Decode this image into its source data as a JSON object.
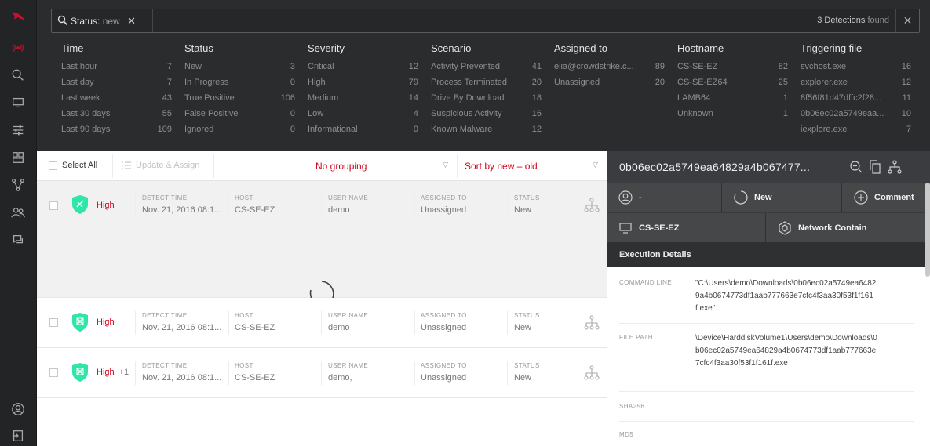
{
  "search": {
    "chip_key": "Status:",
    "chip_value": "new",
    "chip_remove": "✕",
    "count": "3 Detections",
    "count_suffix": "found",
    "clear": "✕"
  },
  "facets": [
    {
      "title": "Time",
      "rows": [
        [
          "Last hour",
          "7"
        ],
        [
          "Last day",
          "7"
        ],
        [
          "Last week",
          "43"
        ],
        [
          "Last 30 days",
          "55"
        ],
        [
          "Last 90 days",
          "109"
        ]
      ]
    },
    {
      "title": "Status",
      "rows": [
        [
          "New",
          "3"
        ],
        [
          "In Progress",
          "0"
        ],
        [
          "True Positive",
          "106"
        ],
        [
          "False Positive",
          "0"
        ],
        [
          "Ignored",
          "0"
        ]
      ]
    },
    {
      "title": "Severity",
      "rows": [
        [
          "Critical",
          "12"
        ],
        [
          "High",
          "79"
        ],
        [
          "Medium",
          "14"
        ],
        [
          "Low",
          "4"
        ],
        [
          "Informational",
          "0"
        ]
      ]
    },
    {
      "title": "Scenario",
      "rows": [
        [
          "Activity Prevented",
          "41"
        ],
        [
          "Process Terminated",
          "20"
        ],
        [
          "Drive By Download",
          "18"
        ],
        [
          "Suspicious Activity",
          "16"
        ],
        [
          "Known Malware",
          "12"
        ]
      ]
    },
    {
      "title": "Assigned to",
      "rows": [
        [
          "elia@crowdstrike.c...",
          "89"
        ],
        [
          "Unassigned",
          "20"
        ]
      ]
    },
    {
      "title": "Hostname",
      "rows": [
        [
          "CS-SE-EZ",
          "82"
        ],
        [
          "CS-SE-EZ64",
          "25"
        ],
        [
          "LAMB64",
          "1"
        ],
        [
          "Unknown",
          "1"
        ]
      ]
    },
    {
      "title": "Triggering file",
      "rows": [
        [
          "svchost.exe",
          "16"
        ],
        [
          "explorer.exe",
          "12"
        ],
        [
          "8f56f81d47dffc2f28...",
          "11"
        ],
        [
          "0b06ec02a5749eaa...",
          "10"
        ],
        [
          "iexplore.exe",
          "7"
        ]
      ]
    }
  ],
  "toolbar": {
    "select_all": "Select All",
    "update_assign": "Update & Assign",
    "grouping": "No grouping",
    "sort": "Sort by new – old"
  },
  "columns": {
    "detect_time": "DETECT TIME",
    "host": "HOST",
    "user_name": "USER NAME",
    "assigned_to": "ASSIGNED TO",
    "status": "STATUS"
  },
  "detections": [
    {
      "severity": "High",
      "more": "",
      "time": "Nov. 21, 2016 08:1...",
      "host": "CS-SE-EZ",
      "user": "demo",
      "assigned": "Unassigned",
      "status": "New"
    },
    {
      "severity": "High",
      "more": "",
      "time": "Nov. 21, 2016 08:1...",
      "host": "CS-SE-EZ",
      "user": "demo",
      "assigned": "Unassigned",
      "status": "New"
    },
    {
      "severity": "High",
      "more": "+1",
      "time": "Nov. 21, 2016 08:1...",
      "host": "CS-SE-EZ",
      "user": "demo,",
      "assigned": "Unassigned",
      "status": "New"
    }
  ],
  "detail": {
    "title": "0b06ec02a5749ea64829a4b067477...",
    "assignee": "-",
    "status": "New",
    "comment": "Comment",
    "host": "CS-SE-EZ",
    "contain": "Network Contain",
    "section": "Execution Details",
    "fields": [
      {
        "key": "COMMAND LINE",
        "value": "\"C:\\Users\\demo\\Downloads\\0b06ec02a5749ea64829a4b0674773df1aab777663e7cfc4f3aa30f53f1f161f.exe\""
      },
      {
        "key": "FILE PATH",
        "value": "\\Device\\HarddiskVolume1\\Users\\demo\\Downloads\\0b06ec02a5749ea64829a4b0674773df1aab777663e7cfc4f3aa30f53f1f161f.exe"
      },
      {
        "key": "SHA256",
        "value": ""
      },
      {
        "key": "MD5",
        "value": ""
      }
    ]
  },
  "colors": {
    "accent": "#d0021b",
    "severity_shield": "#2ee6a8"
  }
}
